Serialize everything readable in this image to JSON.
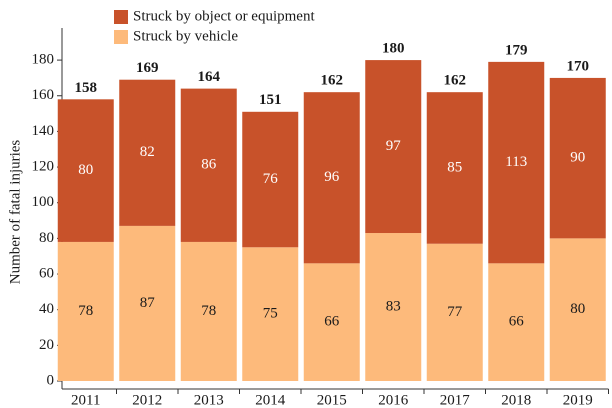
{
  "chart_data": {
    "type": "stacked_bar",
    "y_label": "Number of fatal injuries",
    "categories": [
      "2011",
      "2012",
      "2013",
      "2014",
      "2015",
      "2016",
      "2017",
      "2018",
      "2019"
    ],
    "series": [
      {
        "name": "Struck by vehicle",
        "color": "#fdba7b",
        "label_color": "#1a1a1a",
        "values": [
          78,
          87,
          78,
          75,
          66,
          83,
          77,
          66,
          80
        ]
      },
      {
        "name": "Struck by object or equipment",
        "color": "#c8522a",
        "label_color": "#ffffff",
        "values": [
          80,
          82,
          86,
          76,
          96,
          97,
          85,
          113,
          90
        ]
      }
    ],
    "totals": [
      158,
      169,
      164,
      151,
      162,
      180,
      162,
      179,
      170
    ],
    "ylim": [
      0,
      198
    ],
    "yticks": [
      0,
      20,
      40,
      60,
      80,
      100,
      120,
      140,
      160,
      180
    ],
    "legend": "top-left"
  }
}
